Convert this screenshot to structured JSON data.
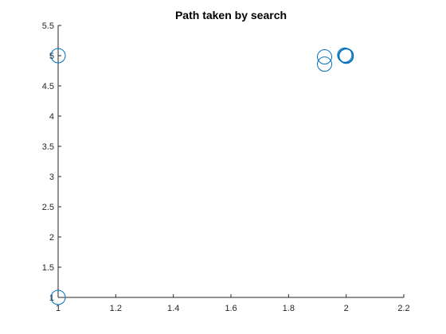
{
  "chart_data": {
    "type": "scatter",
    "title": "Path taken by search",
    "xlabel": "",
    "ylabel": "",
    "xlim": [
      1,
      2.2
    ],
    "ylim": [
      1,
      5.5
    ],
    "xticks": [
      1,
      1.2,
      1.4,
      1.6,
      1.8,
      2,
      2.2
    ],
    "xtick_labels": [
      "1",
      "1.2",
      "1.4",
      "1.6",
      "1.8",
      "2",
      "2.2"
    ],
    "yticks": [
      1,
      1.5,
      2,
      2.5,
      3,
      3.5,
      4,
      4.5,
      5,
      5.5
    ],
    "ytick_labels": [
      "1",
      "1.5",
      "2",
      "2.5",
      "3",
      "3.5",
      "4",
      "4.5",
      "5",
      "5.5"
    ],
    "grid": false,
    "marker": "circle-open",
    "series": [
      {
        "x": [
          1,
          1,
          1.925,
          1.925,
          2.0,
          1.995,
          2.0,
          1.998,
          2.0
        ],
        "y": [
          1,
          5,
          4.98,
          4.86,
          5.0,
          5.01,
          4.99,
          5.0,
          5.0
        ]
      }
    ],
    "colors": {
      "series": "#0072bd",
      "axis": "#262626"
    }
  }
}
